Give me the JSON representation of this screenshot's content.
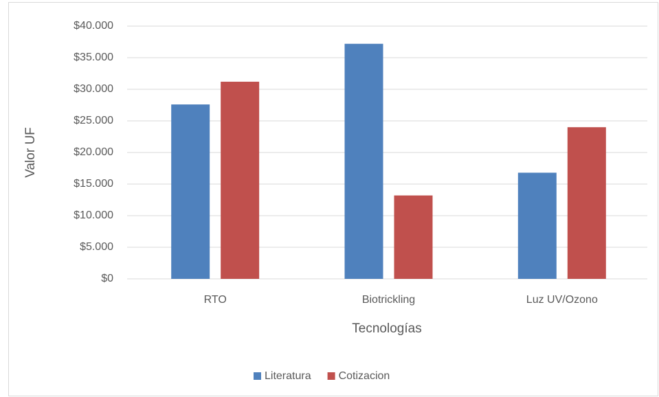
{
  "chart_data": {
    "type": "bar",
    "x_label": "Tecnologías",
    "y_label": "Valor UF",
    "categories": [
      "RTO",
      "Biotrickling",
      "Luz UV/Ozono"
    ],
    "series": [
      {
        "name": "Literatura",
        "color": "#4f81bd",
        "values": [
          27600,
          37200,
          16800
        ]
      },
      {
        "name": "Cotizacion",
        "color": "#c0504d",
        "values": [
          31200,
          13200,
          24000
        ]
      }
    ],
    "ylim": [
      0,
      40000
    ],
    "yticks": [
      {
        "value": 0,
        "label": "$0"
      },
      {
        "value": 5000,
        "label": "$5.000"
      },
      {
        "value": 10000,
        "label": "$10.000"
      },
      {
        "value": 15000,
        "label": "$15.000"
      },
      {
        "value": 20000,
        "label": "$20.000"
      },
      {
        "value": 25000,
        "label": "$25.000"
      },
      {
        "value": 30000,
        "label": "$30.000"
      },
      {
        "value": 35000,
        "label": "$35.000"
      },
      {
        "value": 40000,
        "label": "$40.000"
      }
    ],
    "grid": true,
    "legend": "bottom"
  }
}
